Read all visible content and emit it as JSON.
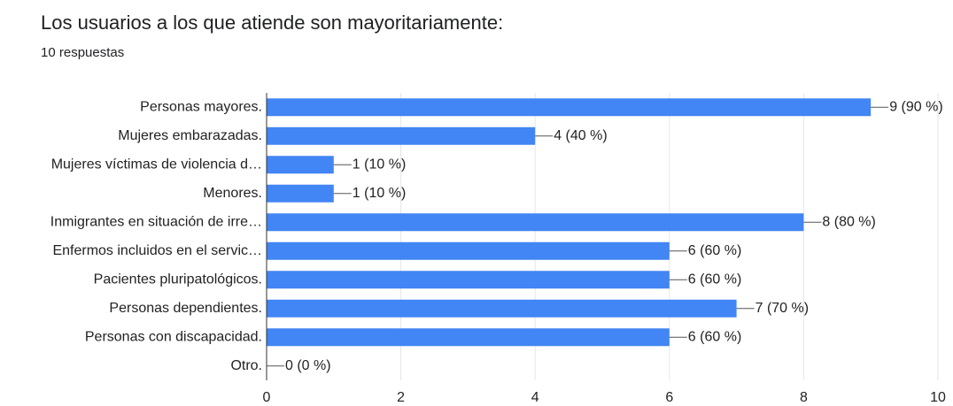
{
  "chart_data": {
    "type": "bar",
    "orientation": "horizontal",
    "title": "Los usuarios a los que atiende son mayoritariamente:",
    "subtitle": "10 respuestas",
    "categories": [
      "Personas mayores.",
      "Mujeres embarazadas.",
      "Mujeres víctimas de violencia d…",
      "Menores.",
      "Inmigrantes en situación de irre…",
      "Enfermos incluidos en el servic…",
      "Pacientes pluripatológicos.",
      "Personas dependientes.",
      "Personas con discapacidad.",
      "Otro."
    ],
    "values": [
      9,
      4,
      1,
      1,
      8,
      6,
      6,
      7,
      6,
      0
    ],
    "value_labels": [
      "9 (90 %)",
      "4 (40 %)",
      "1 (10 %)",
      "1 (10 %)",
      "8 (80 %)",
      "6 (60 %)",
      "6 (60 %)",
      "7 (70 %)",
      "6 (60 %)",
      "0 (0 %)"
    ],
    "color": "#4285f4",
    "xlim": [
      0,
      10
    ],
    "xticks": [
      0,
      2,
      4,
      6,
      8,
      10
    ],
    "grid": true
  }
}
